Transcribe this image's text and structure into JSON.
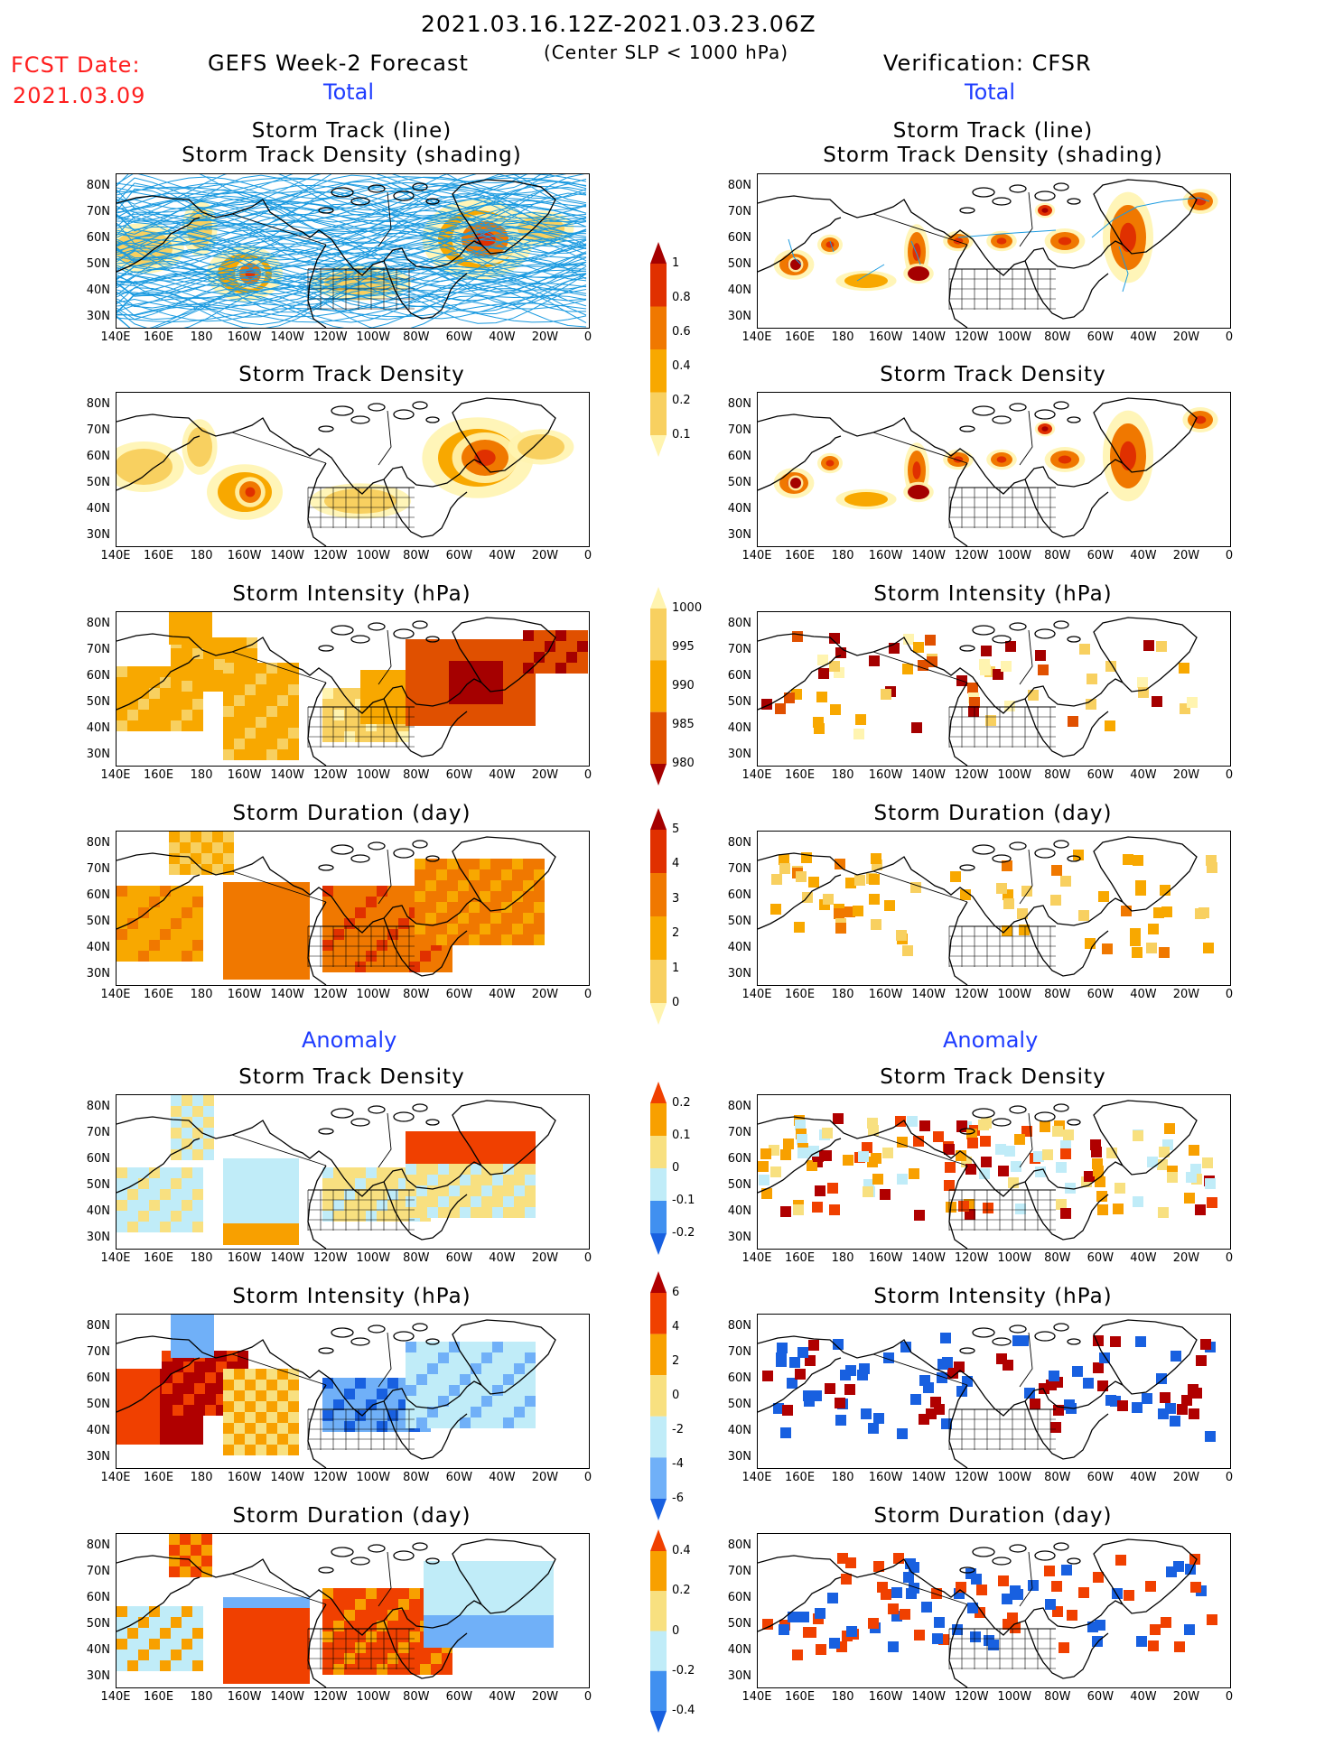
{
  "header": {
    "period": "2021.03.16.12Z-2021.03.23.06Z",
    "criteria": "(Center SLP < 1000 hPa)",
    "fcst_label": "FCST Date:",
    "fcst_date": "2021.03.09",
    "left_title": "GEFS Week-2 Forecast",
    "right_title": "Verification: CFSR",
    "total_label": "Total",
    "anomaly_label": "Anomaly"
  },
  "panel_titles": {
    "track": [
      "Storm Track (line)",
      "Storm Track Density (shading)"
    ],
    "density": "Storm Track Density",
    "intensity": "Storm Intensity (hPa)",
    "duration": "Storm Duration (day)"
  },
  "axes": {
    "lat_ticks": [
      "80N",
      "70N",
      "60N",
      "50N",
      "40N",
      "30N"
    ],
    "lon_ticks": [
      "140E",
      "160E",
      "180",
      "160W",
      "140W",
      "120W",
      "100W",
      "80W",
      "60W",
      "40W",
      "20W",
      "0"
    ]
  },
  "colorbars": {
    "total_density": {
      "labels": [
        "1",
        "0.8",
        "0.6",
        "0.4",
        "0.2",
        "0.1"
      ],
      "colors": [
        "#a50000",
        "#e03000",
        "#f07800",
        "#f8a800",
        "#f8d060",
        "#fff4b0"
      ]
    },
    "total_intensity": {
      "labels": [
        "1000",
        "995",
        "990",
        "985",
        "980"
      ],
      "colors": [
        "#fff4b0",
        "#f8d060",
        "#f8a800",
        "#e05000",
        "#a50000"
      ]
    },
    "total_duration": {
      "labels": [
        "5",
        "4",
        "3",
        "2",
        "1",
        "0"
      ],
      "colors": [
        "#a50000",
        "#e03000",
        "#f07800",
        "#f8a800",
        "#f8d060",
        "#fff4b0"
      ]
    },
    "anom_density": {
      "labels": [
        "0.2",
        "0.1",
        "0",
        "-0.1",
        "-0.2"
      ],
      "colors": [
        "#f04000",
        "#f8a000",
        "#f8e080",
        "#c0ecf8",
        "#4090f0",
        "#1860e0"
      ]
    },
    "anom_intensity": {
      "labels": [
        "6",
        "4",
        "2",
        "0",
        "-2",
        "-4",
        "-6"
      ],
      "colors": [
        "#b00000",
        "#f04000",
        "#f8a000",
        "#f8e080",
        "#c0ecf8",
        "#70b0f8",
        "#1860e0"
      ]
    },
    "anom_duration": {
      "labels": [
        "0.4",
        "0.2",
        "0",
        "-0.2",
        "-0.4"
      ],
      "colors": [
        "#f04000",
        "#f8a000",
        "#f8e080",
        "#c0ecf8",
        "#4090f0",
        "#1860e0"
      ]
    }
  }
}
